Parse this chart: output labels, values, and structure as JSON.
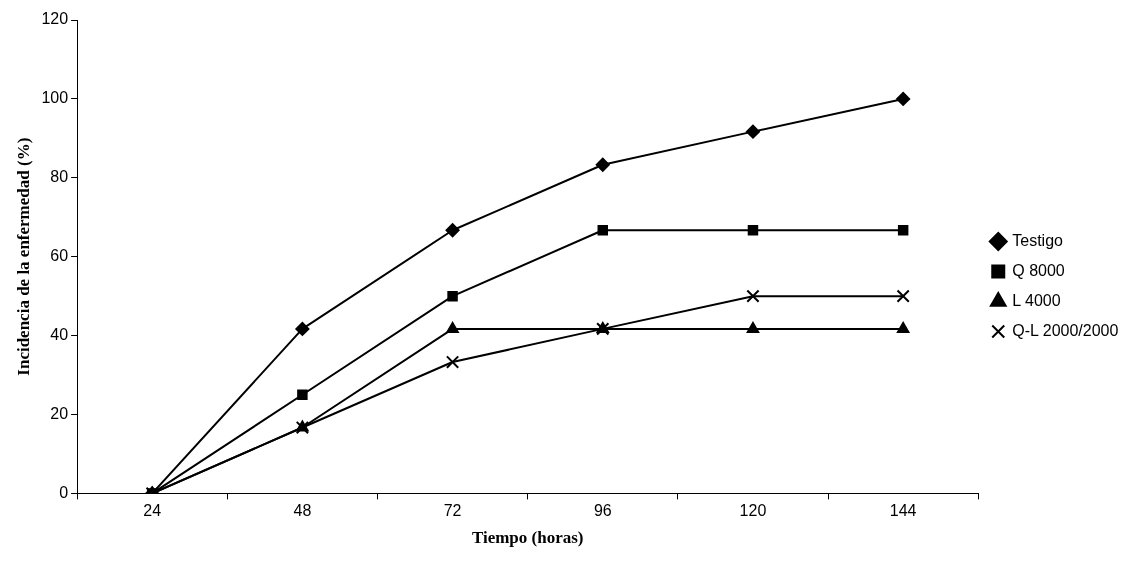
{
  "chart_data": {
    "type": "line",
    "xlabel": "Tiempo (horas)",
    "ylabel": "Incidencia de la enfermedad (%)",
    "categories": [
      "24",
      "48",
      "72",
      "96",
      "120",
      "144"
    ],
    "ylim": [
      0,
      120
    ],
    "yticks": [
      0,
      20,
      40,
      60,
      80,
      100,
      120
    ],
    "grid": false,
    "legend": "right",
    "series": [
      {
        "name": "Testigo",
        "color": "#000000",
        "marker": "diamond",
        "values": [
          0,
          41.7,
          66.7,
          83.3,
          91.7,
          100
        ]
      },
      {
        "name": "Q 8000",
        "color": "#000000",
        "marker": "square",
        "values": [
          0,
          25,
          50,
          66.7,
          66.7,
          66.7
        ]
      },
      {
        "name": "L 4000",
        "color": "#000000",
        "marker": "triangle",
        "values": [
          0,
          16.7,
          41.7,
          41.7,
          41.7,
          41.7
        ]
      },
      {
        "name": "Q-L 2000/2000",
        "color": "#000000",
        "marker": "cross",
        "values": [
          0,
          16.7,
          33.3,
          41.7,
          50,
          50
        ]
      }
    ]
  }
}
